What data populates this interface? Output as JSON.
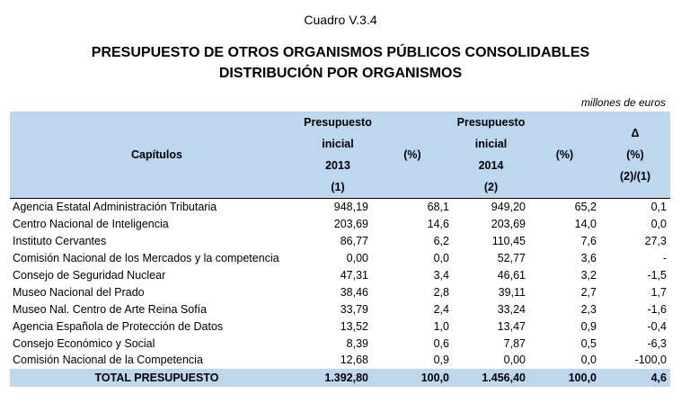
{
  "caption": "Cuadro V.3.4",
  "title_line1": "PRESUPUESTO DE OTROS ORGANISMOS PÚBLICOS CONSOLIDABLES",
  "title_line2": "DISTRIBUCIÓN POR ORGANISMOS",
  "units": "millones de euros",
  "headers": {
    "capitulos": "Capítulos",
    "col2013": [
      "Presupuesto",
      "inicial",
      "2013",
      "(1)"
    ],
    "pct1": "(%)",
    "col2014": [
      "Presupuesto",
      "inicial",
      "2014",
      "(2)"
    ],
    "pct2": "(%)",
    "delta": [
      "Δ",
      "(%)",
      "(2)/(1)"
    ]
  },
  "rows": [
    {
      "name": "Agencia Estatal Administración Tributaria",
      "b2013": "948,19",
      "p2013": "68,1",
      "b2014": "949,20",
      "p2014": "65,2",
      "delta": "0,1"
    },
    {
      "name": "Centro Nacional de Inteligencia",
      "b2013": "203,69",
      "p2013": "14,6",
      "b2014": "203,69",
      "p2014": "14,0",
      "delta": "0,0"
    },
    {
      "name": "Instituto Cervantes",
      "b2013": "86,77",
      "p2013": "6,2",
      "b2014": "110,45",
      "p2014": "7,6",
      "delta": "27,3"
    },
    {
      "name": "Comisión Nacional de los Mercados y la competencia",
      "b2013": "0,00",
      "p2013": "0,0",
      "b2014": "52,77",
      "p2014": "3,6",
      "delta": "-"
    },
    {
      "name": "Consejo de Seguridad Nuclear",
      "b2013": "47,31",
      "p2013": "3,4",
      "b2014": "46,61",
      "p2014": "3,2",
      "delta": "-1,5"
    },
    {
      "name": "Museo Nacional del Prado",
      "b2013": "38,46",
      "p2013": "2,8",
      "b2014": "39,11",
      "p2014": "2,7",
      "delta": "1,7"
    },
    {
      "name": "Museo Nal. Centro de Arte Reina Sofía",
      "b2013": "33,79",
      "p2013": "2,4",
      "b2014": "33,24",
      "p2014": "2,3",
      "delta": "-1,6"
    },
    {
      "name": "Agencia Española de Protección de Datos",
      "b2013": "13,52",
      "p2013": "1,0",
      "b2014": "13,47",
      "p2014": "0,9",
      "delta": "-0,4"
    },
    {
      "name": "Consejo Económico y Social",
      "b2013": "8,39",
      "p2013": "0,6",
      "b2014": "7,87",
      "p2014": "0,5",
      "delta": "-6,3"
    },
    {
      "name": "Comisión Nacional de la Competencia",
      "b2013": "12,68",
      "p2013": "0,9",
      "b2014": "0,00",
      "p2014": "0,0",
      "delta": "-100,0"
    }
  ],
  "total": {
    "label": "TOTAL PRESUPUESTO",
    "b2013": "1.392,80",
    "p2013": "100,0",
    "b2014": "1.456,40",
    "p2014": "100,0",
    "delta": "4,6"
  },
  "colors": {
    "header_bg": "#bdd7ee",
    "row_alt_bg": "#dde9f5"
  }
}
